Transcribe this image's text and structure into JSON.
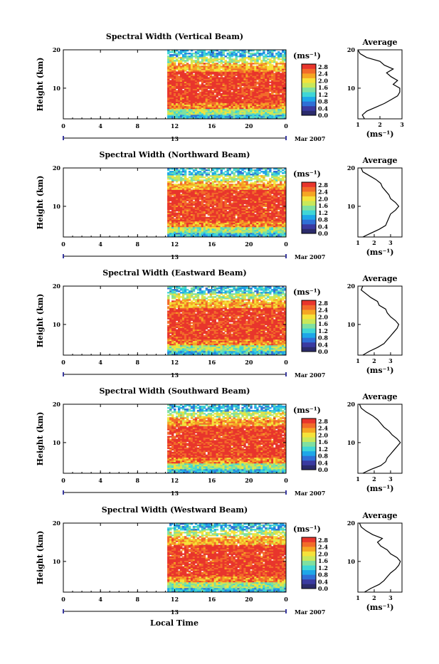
{
  "chart_data": {
    "type": "heatmap",
    "xlabel": "Local Time",
    "ylabel": "Height (km)",
    "date_label": "Mar 2007",
    "x_ticks": [
      "0",
      "4",
      "8",
      "12",
      "16",
      "20",
      "0"
    ],
    "x_range_hours": [
      0,
      24
    ],
    "y_ticks": [
      "20",
      "10"
    ],
    "y_range_km": [
      2,
      20
    ],
    "day_label": "13",
    "colorbar": {
      "unit": "(ms⁻¹)",
      "ticks": [
        "2.8",
        "2.4",
        "2.0",
        "1.6",
        "1.2",
        "0.8",
        "0.4",
        "0.0"
      ],
      "range": [
        0.0,
        2.8
      ],
      "colors": [
        "#2b2b6b",
        "#3a3aa0",
        "#2f6fd6",
        "#1ea7e8",
        "#3fd6d6",
        "#7fe0a0",
        "#c8e85a",
        "#f5e23a",
        "#f5a623",
        "#f26b2a",
        "#e8352c"
      ]
    },
    "data_start_hour": 11.2,
    "panels": [
      {
        "title": "Spectral Width (Vertical Beam)",
        "profile_title": "Average",
        "profile_xlabel": "(ms⁻¹)",
        "profile_xticks": [
          "1",
          "2",
          "3"
        ],
        "profile_xlim": [
          1,
          3
        ],
        "profile": [
          [
            2,
            1.3
          ],
          [
            3,
            1.2
          ],
          [
            4,
            1.4
          ],
          [
            5,
            1.8
          ],
          [
            6,
            2.2
          ],
          [
            7,
            2.5
          ],
          [
            8,
            2.8
          ],
          [
            9,
            2.9
          ],
          [
            10,
            2.9
          ],
          [
            11,
            2.6
          ],
          [
            12,
            2.8
          ],
          [
            13,
            2.5
          ],
          [
            14,
            2.3
          ],
          [
            15,
            2.6
          ],
          [
            16,
            2.2
          ],
          [
            17,
            2.0
          ],
          [
            18,
            1.4
          ],
          [
            19,
            1.1
          ],
          [
            20,
            1.0
          ]
        ]
      },
      {
        "title": "Spectral Width (Northward Beam)",
        "profile_title": "Average",
        "profile_xlabel": "(ms⁻¹)",
        "profile_xticks": [
          "1",
          "2",
          "3"
        ],
        "profile_xlim": [
          1,
          3.7
        ],
        "profile": [
          [
            2,
            1.3
          ],
          [
            3,
            1.8
          ],
          [
            4,
            2.3
          ],
          [
            5,
            2.7
          ],
          [
            6,
            2.8
          ],
          [
            7,
            2.9
          ],
          [
            8,
            3.0
          ],
          [
            9,
            3.3
          ],
          [
            10,
            3.5
          ],
          [
            11,
            3.3
          ],
          [
            12,
            3.0
          ],
          [
            13,
            2.9
          ],
          [
            14,
            2.7
          ],
          [
            15,
            2.5
          ],
          [
            16,
            2.4
          ],
          [
            17,
            2.1
          ],
          [
            18,
            1.7
          ],
          [
            19,
            1.3
          ],
          [
            20,
            1.2
          ]
        ]
      },
      {
        "title": "Spectral Width (Eastward Beam)",
        "profile_title": "Average",
        "profile_xlabel": "(ms⁻¹)",
        "profile_xticks": [
          "1",
          "2",
          "3"
        ],
        "profile_xlim": [
          1,
          3.7
        ],
        "profile": [
          [
            2,
            1.3
          ],
          [
            3,
            1.7
          ],
          [
            4,
            2.2
          ],
          [
            5,
            2.6
          ],
          [
            6,
            2.8
          ],
          [
            7,
            3.0
          ],
          [
            8,
            3.2
          ],
          [
            9,
            3.4
          ],
          [
            10,
            3.5
          ],
          [
            11,
            3.3
          ],
          [
            12,
            3.0
          ],
          [
            13,
            2.8
          ],
          [
            14,
            2.7
          ],
          [
            15,
            2.3
          ],
          [
            16,
            2.2
          ],
          [
            17,
            1.8
          ],
          [
            18,
            1.5
          ],
          [
            19,
            1.2
          ],
          [
            20,
            1.3
          ]
        ]
      },
      {
        "title": "Spectral Width (Southward Beam)",
        "profile_title": "Average",
        "profile_xlabel": "(ms⁻¹)",
        "profile_xticks": [
          "1",
          "2",
          "3"
        ],
        "profile_xlim": [
          1,
          3.7
        ],
        "profile": [
          [
            2,
            1.3
          ],
          [
            3,
            1.8
          ],
          [
            4,
            2.4
          ],
          [
            5,
            2.7
          ],
          [
            6,
            2.8
          ],
          [
            7,
            3.0
          ],
          [
            8,
            3.2
          ],
          [
            9,
            3.4
          ],
          [
            10,
            3.6
          ],
          [
            11,
            3.4
          ],
          [
            12,
            3.1
          ],
          [
            13,
            2.9
          ],
          [
            14,
            2.6
          ],
          [
            15,
            2.4
          ],
          [
            16,
            2.2
          ],
          [
            17,
            1.9
          ],
          [
            18,
            1.5
          ],
          [
            19,
            1.2
          ],
          [
            20,
            1.1
          ]
        ]
      },
      {
        "title": "Spectral Width (Westward Beam)",
        "profile_title": "Average",
        "profile_xlabel": "(ms⁻¹)",
        "profile_xticks": [
          "1",
          "2",
          "3"
        ],
        "profile_xlim": [
          1,
          3.7
        ],
        "profile": [
          [
            2,
            1.4
          ],
          [
            3,
            1.8
          ],
          [
            4,
            2.3
          ],
          [
            5,
            2.6
          ],
          [
            6,
            2.8
          ],
          [
            7,
            3.0
          ],
          [
            8,
            3.3
          ],
          [
            9,
            3.5
          ],
          [
            10,
            3.6
          ],
          [
            11,
            3.4
          ],
          [
            12,
            3.0
          ],
          [
            13,
            2.8
          ],
          [
            14,
            2.4
          ],
          [
            15,
            2.2
          ],
          [
            16,
            2.5
          ],
          [
            17,
            1.9
          ],
          [
            18,
            1.5
          ],
          [
            19,
            1.2
          ],
          [
            20,
            1.1
          ]
        ]
      }
    ]
  }
}
